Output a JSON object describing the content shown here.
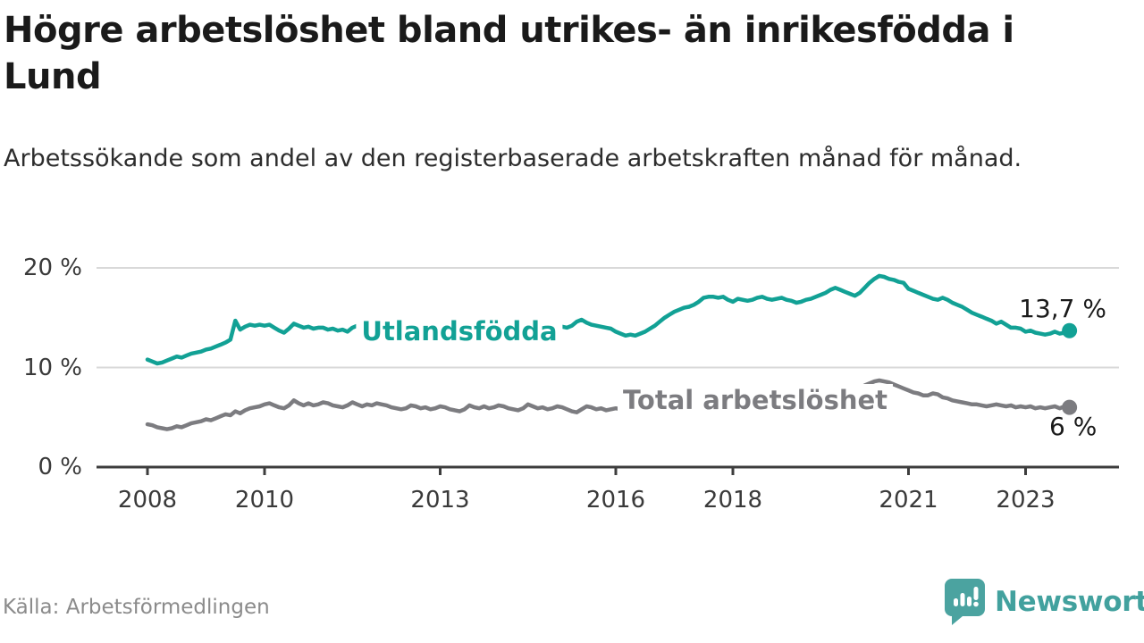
{
  "title": "Högre arbetslöshet bland utrikes- än inrikesfödda i Lund",
  "subtitle": "Arbetssökande som andel av den registerbaserade arbetskraften månad för månad.",
  "source": "Källa: Arbetsförmedlingen",
  "branding": {
    "name": "Newsworthy",
    "color": "#42a19e",
    "icon": "newsworthy-speech-bubble-chart-icon"
  },
  "colors": {
    "title_text": "#1a1a1a",
    "axis_text": "#3a3a3a",
    "axis_line": "#3d3d3d",
    "gridline": "#d9d9d9",
    "series_utlandsfodda": "#12a195",
    "series_total": "#7c7c80",
    "source_text": "#8b8b8b",
    "background": "#ffffff"
  },
  "chart_data": {
    "type": "line",
    "title": "Högre arbetslöshet bland utrikes- än inrikesfödda i Lund",
    "subtitle": "Arbetssökande som andel av den registerbaserade arbetskraften månad för månad.",
    "x_start": "2008-01",
    "x_end": "2023-10",
    "freq": "monthly",
    "grid": "horizontal",
    "legend_position": "inline-labels",
    "ylim": [
      0,
      21
    ],
    "yticks": [
      0,
      10,
      20
    ],
    "ytick_labels": [
      "0 %",
      "10 %",
      "20 %"
    ],
    "xticks": [
      2008,
      2010,
      2013,
      2016,
      2018,
      2021,
      2023
    ],
    "series": [
      {
        "name": "Utlandsfödda",
        "color": "#12a195",
        "end_value": 13.7,
        "label_value": "13,7 %",
        "values": [
          10.8,
          10.6,
          10.4,
          10.5,
          10.7,
          10.9,
          11.1,
          11.0,
          11.2,
          11.4,
          11.5,
          11.6,
          11.8,
          11.9,
          12.1,
          12.3,
          12.5,
          12.8,
          14.7,
          13.8,
          14.1,
          14.3,
          14.2,
          14.3,
          14.2,
          14.3,
          14.0,
          13.7,
          13.5,
          13.9,
          14.4,
          14.2,
          14.0,
          14.1,
          13.9,
          14.0,
          14.0,
          13.8,
          13.9,
          13.7,
          13.8,
          13.6,
          14.0,
          14.2,
          13.9,
          14.0,
          13.8,
          13.9,
          14.2,
          14.5,
          14.3,
          14.0,
          13.9,
          13.8,
          14.1,
          14.3,
          14.0,
          13.9,
          13.8,
          13.9,
          14.0,
          14.2,
          13.9,
          13.8,
          13.7,
          13.6,
          13.9,
          14.1,
          13.8,
          13.9,
          13.7,
          13.8,
          13.9,
          14.0,
          13.8,
          13.7,
          13.9,
          13.8,
          14.1,
          14.3,
          14.1,
          14.2,
          14.3,
          14.2,
          14.3,
          14.1,
          14.0,
          14.2,
          14.6,
          14.8,
          14.5,
          14.3,
          14.2,
          14.1,
          14.0,
          13.9,
          13.6,
          13.4,
          13.2,
          13.3,
          13.2,
          13.4,
          13.6,
          13.9,
          14.2,
          14.6,
          15.0,
          15.3,
          15.6,
          15.8,
          16.0,
          16.1,
          16.3,
          16.6,
          17.0,
          17.1,
          17.1,
          17.0,
          17.1,
          16.8,
          16.6,
          16.9,
          16.8,
          16.7,
          16.8,
          17.0,
          17.1,
          16.9,
          16.8,
          16.9,
          17.0,
          16.8,
          16.7,
          16.5,
          16.6,
          16.8,
          16.9,
          17.1,
          17.3,
          17.5,
          17.8,
          18.0,
          17.8,
          17.6,
          17.4,
          17.2,
          17.5,
          18.0,
          18.5,
          18.9,
          19.2,
          19.1,
          18.9,
          18.8,
          18.6,
          18.5,
          17.9,
          17.7,
          17.5,
          17.3,
          17.1,
          16.9,
          16.8,
          17.0,
          16.8,
          16.5,
          16.3,
          16.1,
          15.8,
          15.5,
          15.3,
          15.1,
          14.9,
          14.7,
          14.4,
          14.6,
          14.3,
          14.0,
          14.0,
          13.9,
          13.6,
          13.7,
          13.5,
          13.4,
          13.3,
          13.4,
          13.6,
          13.4,
          13.5,
          13.7
        ]
      },
      {
        "name": "Total arbetslöshet",
        "color": "#7c7c80",
        "end_value": 6.0,
        "label_value": "6 %",
        "values": [
          4.3,
          4.2,
          4.0,
          3.9,
          3.8,
          3.9,
          4.1,
          4.0,
          4.2,
          4.4,
          4.5,
          4.6,
          4.8,
          4.7,
          4.9,
          5.1,
          5.3,
          5.2,
          5.6,
          5.4,
          5.7,
          5.9,
          6.0,
          6.1,
          6.3,
          6.4,
          6.2,
          6.0,
          5.9,
          6.2,
          6.7,
          6.4,
          6.2,
          6.4,
          6.2,
          6.3,
          6.5,
          6.4,
          6.2,
          6.1,
          6.0,
          6.2,
          6.5,
          6.3,
          6.1,
          6.3,
          6.2,
          6.4,
          6.3,
          6.2,
          6.0,
          5.9,
          5.8,
          5.9,
          6.2,
          6.1,
          5.9,
          6.0,
          5.8,
          5.9,
          6.1,
          6.0,
          5.8,
          5.7,
          5.6,
          5.8,
          6.2,
          6.0,
          5.9,
          6.1,
          5.9,
          6.0,
          6.2,
          6.1,
          5.9,
          5.8,
          5.7,
          5.9,
          6.3,
          6.1,
          5.9,
          6.0,
          5.8,
          5.9,
          6.1,
          6.0,
          5.8,
          5.6,
          5.5,
          5.8,
          6.1,
          6.0,
          5.8,
          5.9,
          5.7,
          5.8,
          5.9,
          5.8,
          5.6,
          5.5,
          5.6,
          5.8,
          6.2,
          6.1,
          6.0,
          6.1,
          6.0,
          6.1,
          6.2,
          6.1,
          6.0,
          6.0,
          6.1,
          6.2,
          6.5,
          6.4,
          6.3,
          6.4,
          6.3,
          6.4,
          6.5,
          6.4,
          6.3,
          6.3,
          6.4,
          6.5,
          6.7,
          6.6,
          6.5,
          6.6,
          6.6,
          6.7,
          6.8,
          6.7,
          6.7,
          6.8,
          6.9,
          7.0,
          7.2,
          7.1,
          7.1,
          7.2,
          7.3,
          7.4,
          7.6,
          7.7,
          7.9,
          8.2,
          8.4,
          8.6,
          8.7,
          8.6,
          8.5,
          8.3,
          8.1,
          7.9,
          7.7,
          7.5,
          7.4,
          7.2,
          7.2,
          7.4,
          7.3,
          7.0,
          6.9,
          6.7,
          6.6,
          6.5,
          6.4,
          6.3,
          6.3,
          6.2,
          6.1,
          6.2,
          6.3,
          6.2,
          6.1,
          6.2,
          6.0,
          6.1,
          6.0,
          6.1,
          5.9,
          6.0,
          5.9,
          6.0,
          6.1,
          5.9,
          6.1,
          6.0
        ]
      }
    ]
  }
}
